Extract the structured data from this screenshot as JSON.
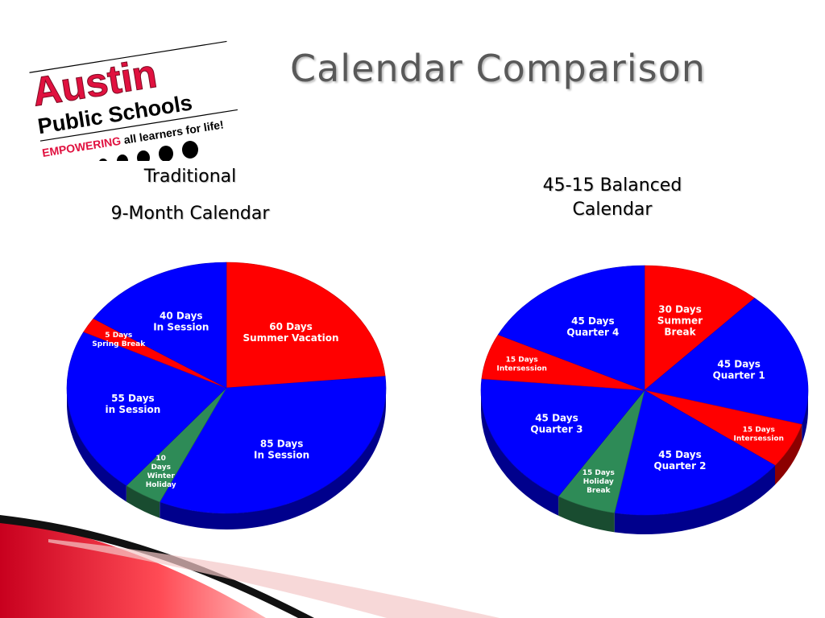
{
  "slide": {
    "title": "Calendar Comparison",
    "logo": {
      "line1": "Austin",
      "line2": "Public Schools",
      "tagline_em": "EMPOWERING",
      "tagline_rest": "all learners for life!"
    }
  },
  "chart_data": [
    {
      "type": "pie",
      "title_lines": [
        "Traditional",
        "9-Month Calendar"
      ],
      "slices": [
        {
          "value": 60,
          "label_lines": [
            "60 Days",
            "Summer Vacation"
          ],
          "color": "#ff0000"
        },
        {
          "value": 85,
          "label_lines": [
            "85 Days",
            "In Session"
          ],
          "color": "#0000ff"
        },
        {
          "value": 10,
          "label_lines": [
            "10",
            "Days",
            "Winter",
            "Holiday"
          ],
          "color": "#2e8b57"
        },
        {
          "value": 55,
          "label_lines": [
            "55 Days",
            "in Session"
          ],
          "color": "#0000ff"
        },
        {
          "value": 5,
          "label_lines": [
            "5 Days",
            "Spring Break"
          ],
          "color": "#ff0000"
        },
        {
          "value": 40,
          "label_lines": [
            "40 Days",
            "In Session"
          ],
          "color": "#0000ff"
        }
      ]
    },
    {
      "type": "pie",
      "title_lines": [
        "45-15 Balanced",
        "Calendar"
      ],
      "slices": [
        {
          "value": 30,
          "label_lines": [
            "30 Days",
            "Summer",
            "Break"
          ],
          "color": "#ff0000"
        },
        {
          "value": 45,
          "label_lines": [
            "45 Days",
            "Quarter 1"
          ],
          "color": "#0000ff"
        },
        {
          "value": 15,
          "label_lines": [
            "15 Days",
            "Intersession"
          ],
          "color": "#ff0000"
        },
        {
          "value": 45,
          "label_lines": [
            "45 Days",
            "Quarter 2"
          ],
          "color": "#0000ff"
        },
        {
          "value": 15,
          "label_lines": [
            "15 Days",
            "Holiday",
            "Break"
          ],
          "color": "#2e8b57"
        },
        {
          "value": 45,
          "label_lines": [
            "45 Days",
            "Quarter 3"
          ],
          "color": "#0000ff"
        },
        {
          "value": 15,
          "label_lines": [
            "15 Days",
            "Intersession"
          ],
          "color": "#ff0000"
        },
        {
          "value": 45,
          "label_lines": [
            "45 Days",
            "Quarter 4"
          ],
          "color": "#0000ff"
        }
      ]
    }
  ]
}
